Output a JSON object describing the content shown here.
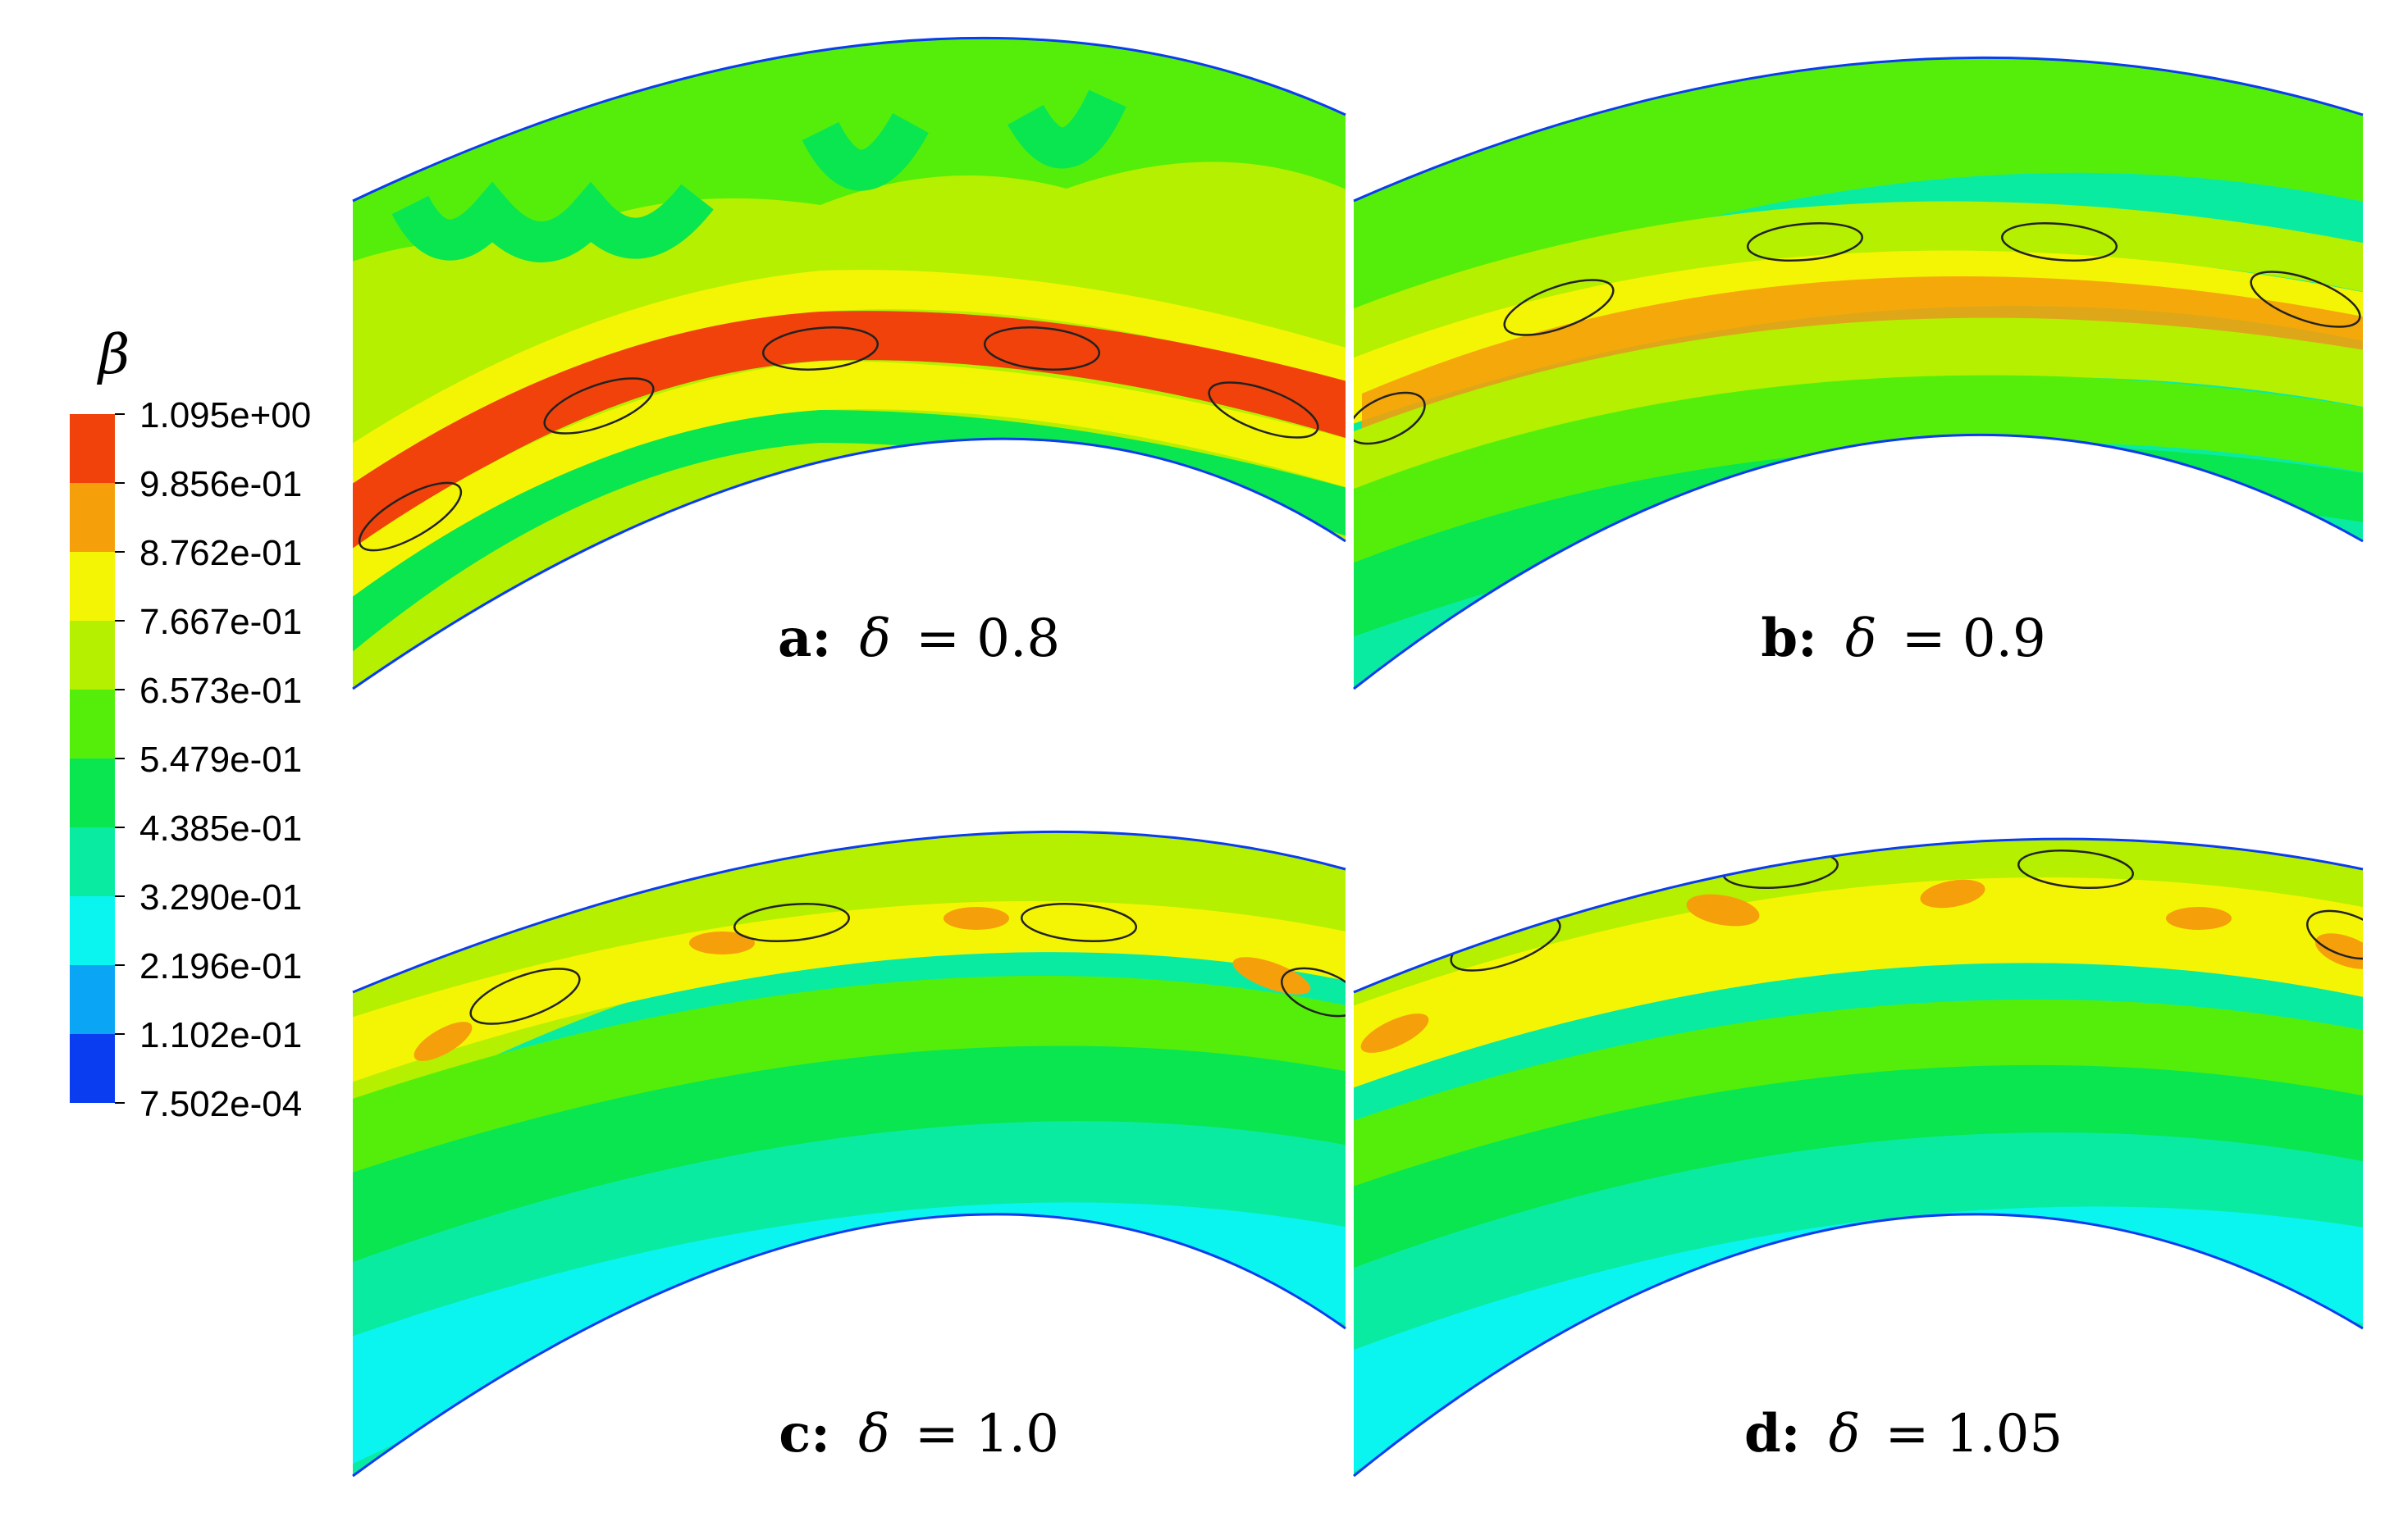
{
  "legend": {
    "symbol": "β",
    "ticks": [
      "1.095e+00",
      "9.856e-01",
      "8.762e-01",
      "7.667e-01",
      "6.573e-01",
      "5.479e-01",
      "4.385e-01",
      "3.290e-01",
      "2.196e-01",
      "1.102e-01",
      "7.502e-04"
    ],
    "colors": [
      "#f0420a",
      "#f5a00a",
      "#f4f504",
      "#b4f000",
      "#55ee0a",
      "#0ae650",
      "#0aeba2",
      "#0af5f0",
      "#0aa5f5",
      "#0a3cf0"
    ]
  },
  "panels": [
    {
      "id": "a",
      "letter": "a:",
      "symbol": "δ",
      "eq": "= 0.8"
    },
    {
      "id": "b",
      "letter": "b:",
      "symbol": "δ",
      "eq": "= 0.9"
    },
    {
      "id": "c",
      "letter": "c:",
      "symbol": "δ",
      "eq": "= 1.0"
    },
    {
      "id": "d",
      "letter": "d:",
      "symbol": "δ",
      "eq": "= 1.05"
    }
  ]
}
